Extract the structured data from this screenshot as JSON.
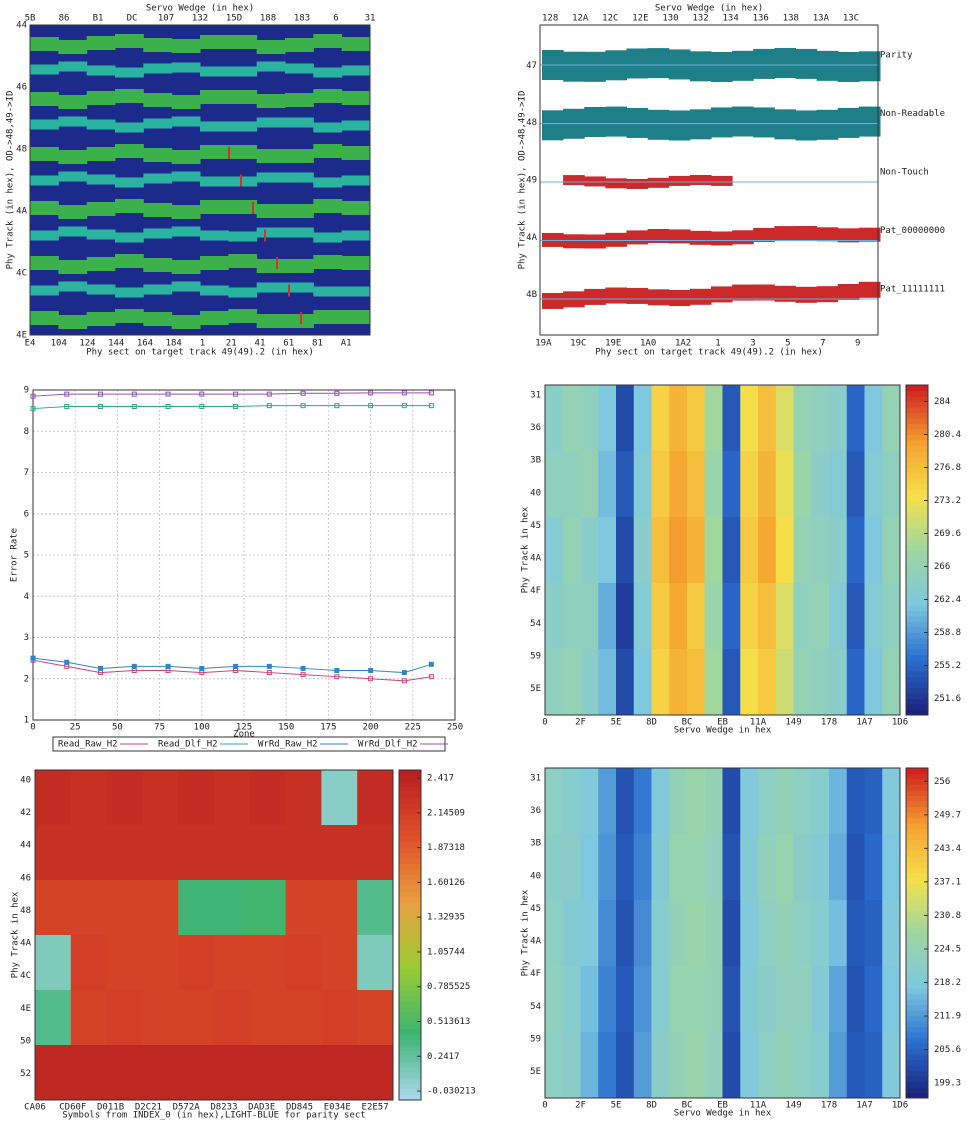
{
  "chart_data": [
    {
      "type": "track_map",
      "top_label": "Servo Wedge (in hex)",
      "bottom_label": "Phy sect on target track 49(49).2 (in hex)",
      "left_label": "Phy Track (in hex), OD->48,49->ID",
      "top_ticks": [
        "5B",
        "86",
        "B1",
        "DC",
        "107",
        "132",
        "15D",
        "188",
        "183",
        "6",
        "31"
      ],
      "bottom_ticks": [
        "E4",
        "104",
        "124",
        "144",
        "164",
        "184",
        "1",
        "21",
        "41",
        "61",
        "81",
        "A1"
      ],
      "left_ticks": [
        "44",
        "46",
        "48",
        "4A",
        "4C",
        "4E"
      ]
    },
    {
      "type": "band_map",
      "top_label": "Servo Wedge (in hex)",
      "bottom_label": "Phy sect on target track 49(49).2 (in hex)",
      "left_label": "Phy Track (in hex), OD->48,49->ID",
      "top_ticks": [
        "128",
        "12A",
        "12C",
        "12E",
        "130",
        "132",
        "134",
        "136",
        "138",
        "13A",
        "13C"
      ],
      "bottom_ticks": [
        "19A",
        "19C",
        "19E",
        "1A0",
        "1A2",
        "1",
        "3",
        "5",
        "7",
        "9"
      ],
      "left_ticks": [
        "47",
        "48",
        "49",
        "4A",
        "4B"
      ],
      "band_labels": [
        "Parity",
        "Non-Readable",
        "Non-Touch",
        "Pat_00000000",
        "Pat_11111111"
      ]
    },
    {
      "type": "line",
      "xlabel": "Zone",
      "ylabel": "Error Rate",
      "x": [
        0,
        20,
        40,
        60,
        80,
        100,
        120,
        140,
        160,
        180,
        200,
        220,
        236
      ],
      "series": [
        {
          "name": "Read_Raw_H2",
          "color": "#d0407a",
          "values": [
            2.45,
            2.3,
            2.15,
            2.2,
            2.2,
            2.15,
            2.2,
            2.15,
            2.1,
            2.05,
            2.0,
            1.95,
            2.05
          ]
        },
        {
          "name": "Read_Dlf_H2",
          "color": "#2aa88a",
          "values": [
            8.55,
            8.6,
            8.6,
            8.6,
            8.6,
            8.6,
            8.6,
            8.62,
            8.62,
            8.62,
            8.62,
            8.62,
            8.62
          ]
        },
        {
          "name": "WrRd_Raw_H2",
          "color": "#2f86c8",
          "values": [
            2.5,
            2.4,
            2.25,
            2.3,
            2.3,
            2.25,
            2.3,
            2.3,
            2.25,
            2.2,
            2.2,
            2.15,
            2.35
          ]
        },
        {
          "name": "WrRd_Dlf_H2",
          "color": "#9a4fb0",
          "values": [
            8.85,
            8.9,
            8.9,
            8.9,
            8.9,
            8.9,
            8.9,
            8.9,
            8.92,
            8.92,
            8.93,
            8.93,
            8.93
          ]
        }
      ],
      "xlim": [
        0,
        250
      ],
      "xticks": [
        0,
        25,
        50,
        75,
        100,
        125,
        150,
        175,
        200,
        225,
        250
      ],
      "ylim": [
        1,
        9
      ],
      "yticks": [
        1,
        2,
        3,
        4,
        5,
        6,
        7,
        8,
        9
      ],
      "grid": true
    },
    {
      "type": "heatmap",
      "xlabel": "Servo Wedge in hex",
      "ylabel": "Phy Track in hex",
      "xtick_labels": [
        "0",
        "2F",
        "5E",
        "8D",
        "BC",
        "EB",
        "11A",
        "149",
        "178",
        "1A7",
        "1D6"
      ],
      "ytick_labels": [
        "31",
        "36",
        "3B",
        "40",
        "45",
        "4A",
        "4F",
        "54",
        "59",
        "5E"
      ],
      "z": [
        [
          264,
          266,
          265,
          262,
          253,
          262,
          275,
          278,
          276,
          268,
          254,
          274,
          277,
          272,
          266,
          265,
          264,
          255,
          262,
          266
        ],
        [
          265,
          265,
          266,
          261,
          254,
          263,
          276,
          279,
          277,
          267,
          255,
          275,
          278,
          273,
          267,
          264,
          263,
          254,
          263,
          265
        ],
        [
          263,
          266,
          264,
          262,
          253,
          264,
          277,
          280,
          278,
          268,
          254,
          276,
          279,
          274,
          266,
          265,
          264,
          255,
          262,
          266
        ],
        [
          264,
          265,
          265,
          260,
          252,
          263,
          276,
          279,
          276,
          267,
          255,
          275,
          277,
          272,
          265,
          266,
          263,
          254,
          263,
          265
        ],
        [
          265,
          266,
          264,
          261,
          253,
          262,
          275,
          278,
          277,
          268,
          254,
          274,
          276,
          271,
          266,
          265,
          264,
          255,
          262,
          266
        ]
      ],
      "zlim": [
        249.8,
        285.8
      ],
      "zticks": [
        284,
        280.4,
        276.8,
        273.2,
        269.6,
        266,
        262.4,
        258.8,
        255.2,
        251.6
      ],
      "colorscale": [
        "#1a237e",
        "#2a6fd0",
        "#7ec8e0",
        "#9ed6a0",
        "#f5e04a",
        "#f5a030",
        "#d02020"
      ]
    },
    {
      "type": "heatmap",
      "xlabel": "Symbols from INDEX_0 (in hex),LIGHT-BLUE for parity sect",
      "ylabel": "Phy Track in hex",
      "xtick_labels": [
        "CA06",
        "CD60F",
        "D011B",
        "D2C21",
        "D572A",
        "D8233",
        "DAD3E",
        "DD845",
        "E034E",
        "E2E57"
      ],
      "ytick_labels": [
        "40",
        "42",
        "44",
        "46",
        "48",
        "4A",
        "4C",
        "4E",
        "50",
        "52"
      ],
      "z": [
        [
          2.35,
          2.3,
          2.35,
          2.3,
          2.35,
          2.3,
          2.35,
          2.3,
          0.05,
          2.35
        ],
        [
          2.3,
          2.3,
          2.3,
          2.3,
          2.3,
          2.3,
          2.3,
          2.3,
          2.3,
          2.3
        ],
        [
          2.1,
          2.1,
          2.1,
          2.1,
          0.4,
          0.4,
          0.45,
          2.1,
          2.1,
          0.3
        ],
        [
          0.1,
          2.15,
          2.1,
          2.1,
          2.15,
          2.1,
          2.1,
          2.15,
          2.1,
          0.1
        ],
        [
          0.3,
          2.1,
          2.15,
          2.1,
          2.1,
          2.15,
          2.1,
          2.1,
          2.15,
          2.1
        ],
        [
          2.4,
          2.4,
          2.4,
          2.4,
          2.4,
          2.4,
          2.4,
          2.4,
          2.4,
          2.4
        ]
      ],
      "zlim": [
        -0.1,
        2.48
      ],
      "zticks": [
        2.417,
        2.14509,
        1.87318,
        1.60126,
        1.32935,
        1.05744,
        0.785525,
        0.513613,
        0.2417,
        -0.030213
      ],
      "colorscale": [
        "#a8d8ea",
        "#3cb371",
        "#9acd32",
        "#e8a040",
        "#e0502a",
        "#b82020"
      ]
    },
    {
      "type": "heatmap",
      "xlabel": "Servo Wedge in hex",
      "ylabel": "Phy Track in hex",
      "xtick_labels": [
        "0",
        "2F",
        "5E",
        "8D",
        "BC",
        "EB",
        "11A",
        "149",
        "178",
        "1A7",
        "1D6"
      ],
      "ytick_labels": [
        "31",
        "36",
        "3B",
        "40",
        "45",
        "4A",
        "4F",
        "54",
        "59",
        "5E"
      ],
      "z": [
        [
          222,
          220,
          218,
          212,
          203,
          208,
          218,
          224,
          226,
          224,
          202,
          218,
          222,
          224,
          222,
          220,
          215,
          204,
          205,
          218
        ],
        [
          221,
          221,
          217,
          211,
          204,
          209,
          219,
          225,
          225,
          223,
          203,
          219,
          223,
          225,
          221,
          219,
          214,
          203,
          206,
          217
        ],
        [
          222,
          219,
          218,
          210,
          203,
          210,
          220,
          224,
          226,
          224,
          202,
          218,
          222,
          224,
          222,
          220,
          216,
          204,
          205,
          218
        ],
        [
          223,
          220,
          216,
          209,
          204,
          211,
          220,
          225,
          225,
          224,
          203,
          219,
          221,
          223,
          223,
          219,
          213,
          203,
          206,
          217
        ],
        [
          222,
          221,
          215,
          208,
          203,
          212,
          221,
          224,
          226,
          223,
          202,
          218,
          222,
          224,
          222,
          220,
          212,
          204,
          205,
          218
        ]
      ],
      "zlim": [
        196.5,
        258.5
      ],
      "zticks": [
        256,
        249.7,
        243.4,
        237.1,
        230.8,
        224.5,
        218.2,
        211.9,
        205.6,
        199.3
      ],
      "colorscale": [
        "#1a237e",
        "#2a6fd0",
        "#7ec8e0",
        "#9ed6a0",
        "#f5e04a",
        "#f5a030",
        "#d02020"
      ]
    }
  ]
}
